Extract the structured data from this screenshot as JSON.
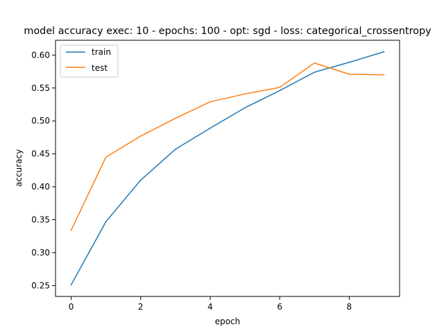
{
  "chart_data": {
    "type": "line",
    "title": "model accuracy exec: 10 - epochs: 100 - opt: sgd - loss: categorical_crossentropy",
    "xlabel": "epoch",
    "ylabel": "accuracy",
    "xlim": [
      -0.45,
      9.45
    ],
    "ylim": [
      0.2335,
      0.6225
    ],
    "xticks": [
      0,
      2,
      4,
      6,
      8
    ],
    "yticks": [
      0.25,
      0.3,
      0.35,
      0.4,
      0.45,
      0.5,
      0.55,
      0.6
    ],
    "xtick_labels": [
      "0",
      "2",
      "4",
      "6",
      "8"
    ],
    "ytick_labels": [
      "0.25",
      "0.30",
      "0.35",
      "0.40",
      "0.45",
      "0.50",
      "0.55",
      "0.60"
    ],
    "grid": false,
    "legend_position": "upper-left",
    "x": [
      0,
      1,
      2,
      3,
      4,
      5,
      6,
      7,
      8,
      9
    ],
    "series": [
      {
        "name": "train",
        "color": "#1f77b4",
        "values": [
          0.251,
          0.347,
          0.41,
          0.457,
          0.489,
          0.52,
          0.546,
          0.574,
          0.589,
          0.605
        ]
      },
      {
        "name": "test",
        "color": "#ff7f0e",
        "values": [
          0.334,
          0.445,
          0.477,
          0.504,
          0.529,
          0.541,
          0.551,
          0.588,
          0.571,
          0.57
        ]
      }
    ]
  }
}
